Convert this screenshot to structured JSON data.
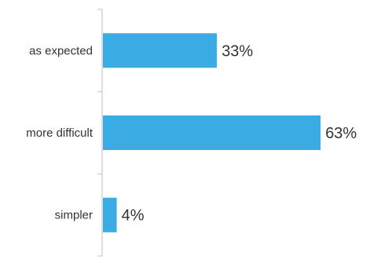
{
  "chart_data": {
    "type": "bar",
    "orientation": "horizontal",
    "categories": [
      "as expected",
      "more difficult",
      "simpler"
    ],
    "values": [
      33,
      63,
      4
    ],
    "value_labels": [
      "33%",
      "63%",
      "4%"
    ],
    "unit": "%",
    "xlim": [
      0,
      100
    ],
    "grid": false,
    "legend": "none",
    "title": "",
    "xlabel": "",
    "ylabel": ""
  },
  "colors": {
    "bar": "#3AACE3",
    "axis": "#BFBFBF",
    "text": "#333333"
  }
}
